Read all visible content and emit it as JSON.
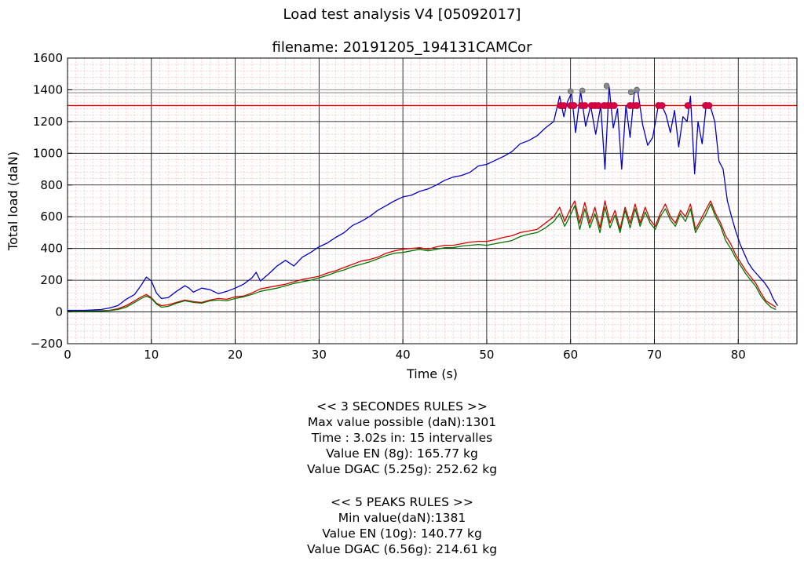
{
  "title": "Load test analysis  V4 [05092017]",
  "subtitle": "filename:  20191205_194131CAMCor",
  "chart_data": {
    "type": "line",
    "xlabel": "Time (s)",
    "ylabel": "Total load (daN)",
    "xlim": [
      0,
      87
    ],
    "ylim": [
      -200,
      1600
    ],
    "xticks": [
      0,
      10,
      20,
      30,
      40,
      50,
      60,
      70,
      80
    ],
    "yticks": [
      -200,
      0,
      200,
      400,
      600,
      800,
      1000,
      1200,
      1400,
      1600
    ],
    "grid": true,
    "colors": {
      "total": "#0000cc",
      "channel_red": "#dd0000",
      "channel_green": "#007700",
      "threshold": "#ff0000",
      "peak_lines": "#999999",
      "peak_markers": "#dd0044"
    },
    "threshold_line": 1301,
    "peak_lines": [
      1381,
      1400
    ],
    "series": [
      {
        "color": "#0000cc",
        "x": [
          0,
          2,
          4,
          5,
          6,
          7,
          8,
          8.8,
          9.4,
          10,
          10.6,
          11.2,
          12,
          13,
          14,
          14.5,
          15,
          16,
          17,
          18,
          19,
          20,
          21,
          22,
          22.5,
          23,
          24,
          25,
          26,
          27,
          28,
          29,
          30,
          31,
          32,
          33,
          34,
          35,
          36,
          37,
          38,
          39,
          40,
          41,
          42,
          43,
          44,
          45,
          46,
          47,
          48,
          49,
          50,
          51,
          52,
          53,
          54,
          55,
          56,
          57,
          58,
          58.7,
          59.2,
          59.6,
          60.1,
          60.6,
          61.2,
          61.8,
          62.4,
          63.0,
          63.6,
          64.1,
          64.6,
          65.1,
          65.6,
          66.1,
          66.6,
          67.1,
          67.6,
          68.0,
          68.6,
          69.2,
          69.8,
          70.4,
          70.9,
          71.4,
          71.9,
          72.4,
          72.9,
          73.4,
          73.9,
          74.3,
          74.8,
          75.2,
          75.7,
          76.2,
          76.7,
          77.2,
          77.7,
          78.2,
          78.7,
          79.2,
          79.7,
          80.2,
          80.7,
          81.2,
          81.7,
          82.2,
          82.7,
          83.2,
          83.7,
          84.2,
          84.7
        ],
        "y": [
          10,
          10,
          15,
          25,
          40,
          80,
          110,
          170,
          220,
          195,
          120,
          85,
          90,
          130,
          165,
          150,
          125,
          150,
          140,
          115,
          130,
          150,
          175,
          215,
          250,
          195,
          240,
          290,
          325,
          290,
          345,
          375,
          410,
          435,
          470,
          500,
          545,
          570,
          600,
          640,
          670,
          700,
          725,
          735,
          760,
          775,
          800,
          830,
          850,
          860,
          880,
          920,
          930,
          955,
          980,
          1010,
          1060,
          1080,
          1110,
          1160,
          1200,
          1360,
          1230,
          1320,
          1380,
          1130,
          1390,
          1170,
          1300,
          1120,
          1300,
          900,
          1420,
          1160,
          1280,
          900,
          1300,
          1100,
          1380,
          1400,
          1180,
          1050,
          1100,
          1280,
          1300,
          1240,
          1130,
          1270,
          1040,
          1230,
          1200,
          1360,
          870,
          1200,
          1060,
          1320,
          1290,
          1200,
          950,
          900,
          700,
          600,
          510,
          430,
          370,
          310,
          270,
          240,
          210,
          180,
          140,
          80,
          40
        ]
      },
      {
        "color": "#dd0000",
        "x": [
          0,
          2,
          4,
          5,
          6,
          7,
          8,
          8.8,
          9.4,
          10,
          10.6,
          11.2,
          12,
          13,
          14,
          15,
          16,
          17,
          18,
          19,
          20,
          21,
          22,
          23,
          24,
          25,
          26,
          27,
          28,
          29,
          30,
          31,
          32,
          33,
          34,
          35,
          36,
          37,
          38,
          39,
          40,
          41,
          42,
          43,
          44,
          45,
          46,
          47,
          48,
          49,
          50,
          51,
          52,
          53,
          54,
          55,
          56,
          57,
          58,
          58.7,
          59.3,
          59.9,
          60.5,
          61.1,
          61.7,
          62.3,
          62.9,
          63.5,
          64.1,
          64.7,
          65.3,
          65.9,
          66.5,
          67.1,
          67.7,
          68.3,
          68.9,
          69.5,
          70.1,
          70.7,
          71.3,
          71.9,
          72.5,
          73.1,
          73.7,
          74.3,
          74.9,
          75.5,
          76.1,
          76.7,
          77.3,
          77.9,
          78.5,
          79.1,
          79.7,
          80.3,
          80.9,
          81.5,
          82.1,
          82.7,
          83.3,
          83.9,
          84.5
        ],
        "y": [
          5,
          5,
          8,
          10,
          20,
          40,
          70,
          95,
          110,
          90,
          55,
          40,
          45,
          60,
          75,
          65,
          60,
          75,
          85,
          80,
          95,
          100,
          120,
          145,
          155,
          165,
          175,
          190,
          205,
          215,
          225,
          245,
          260,
          280,
          300,
          320,
          330,
          345,
          370,
          385,
          395,
          400,
          405,
          395,
          410,
          420,
          420,
          430,
          440,
          445,
          445,
          455,
          470,
          480,
          500,
          510,
          520,
          560,
          600,
          660,
          570,
          640,
          700,
          560,
          690,
          560,
          660,
          530,
          700,
          560,
          640,
          520,
          660,
          560,
          680,
          560,
          660,
          580,
          540,
          620,
          680,
          600,
          560,
          640,
          600,
          680,
          520,
          580,
          640,
          700,
          620,
          560,
          480,
          430,
          360,
          310,
          260,
          220,
          180,
          120,
          70,
          50,
          30
        ]
      },
      {
        "color": "#007700",
        "x": [
          0,
          2,
          4,
          5,
          6,
          7,
          8,
          8.8,
          9.4,
          10,
          10.6,
          11.2,
          12,
          13,
          14,
          15,
          16,
          17,
          18,
          19,
          20,
          21,
          22,
          23,
          24,
          25,
          26,
          27,
          28,
          29,
          30,
          31,
          32,
          33,
          34,
          35,
          36,
          37,
          38,
          39,
          40,
          41,
          42,
          43,
          44,
          45,
          46,
          47,
          48,
          49,
          50,
          51,
          52,
          53,
          54,
          55,
          56,
          57,
          58,
          58.7,
          59.3,
          59.9,
          60.5,
          61.1,
          61.7,
          62.3,
          62.9,
          63.5,
          64.1,
          64.7,
          65.3,
          65.9,
          66.5,
          67.1,
          67.7,
          68.3,
          68.9,
          69.5,
          70.1,
          70.7,
          71.3,
          71.9,
          72.5,
          73.1,
          73.7,
          74.3,
          74.9,
          75.5,
          76.1,
          76.7,
          77.3,
          77.9,
          78.5,
          79.1,
          79.7,
          80.3,
          80.9,
          81.5,
          82.1,
          82.7,
          83.3,
          83.9,
          84.5
        ],
        "y": [
          5,
          5,
          6,
          8,
          15,
          30,
          60,
          85,
          100,
          85,
          50,
          30,
          35,
          55,
          70,
          60,
          55,
          70,
          75,
          70,
          85,
          95,
          110,
          130,
          140,
          150,
          165,
          180,
          190,
          200,
          215,
          230,
          250,
          265,
          285,
          300,
          315,
          335,
          355,
          370,
          375,
          385,
          395,
          385,
          395,
          405,
          405,
          415,
          420,
          425,
          420,
          430,
          440,
          450,
          475,
          490,
          500,
          530,
          570,
          620,
          540,
          600,
          670,
          520,
          650,
          530,
          620,
          500,
          660,
          530,
          610,
          500,
          640,
          530,
          650,
          540,
          630,
          560,
          520,
          600,
          650,
          580,
          540,
          620,
          570,
          650,
          500,
          560,
          610,
          680,
          600,
          540,
          450,
          400,
          340,
          290,
          240,
          200,
          160,
          100,
          60,
          30,
          15
        ]
      }
    ],
    "peak_markers": {
      "x": [
        58.8,
        59.2,
        60.0,
        60.4,
        61.3,
        61.7,
        62.5,
        62.9,
        63.3,
        64.0,
        64.4,
        64.8,
        65.2,
        67.1,
        67.5,
        67.9,
        70.5,
        70.9,
        74.0,
        76.1,
        76.5
      ],
      "y": [
        1301,
        1301,
        1301,
        1301,
        1301,
        1301,
        1301,
        1301,
        1301,
        1301,
        1301,
        1301,
        1301,
        1301,
        1301,
        1301,
        1301,
        1301,
        1301,
        1301,
        1301
      ]
    },
    "peak_points": {
      "x": [
        60.0,
        61.4,
        64.3,
        67.2,
        67.9
      ],
      "y": [
        1390,
        1395,
        1425,
        1385,
        1400
      ]
    }
  },
  "notes": {
    "three_sec_header": "<< 3 SECONDES RULES >>",
    "max_value": "Max value possible (daN):1301",
    "time": "Time : 3.02s in: 15 intervalles",
    "value_en_3": "Value EN (8g): 165.77 kg",
    "value_dgac_3": "Value DGAC (5.25g): 252.62 kg",
    "five_peaks_header": "<< 5 PEAKS RULES >>",
    "min_value": "Min value(daN):1381",
    "value_en_5": "Value EN (10g): 140.77 kg",
    "value_dgac_5": "Value DGAC (6.56g): 214.61 kg"
  }
}
